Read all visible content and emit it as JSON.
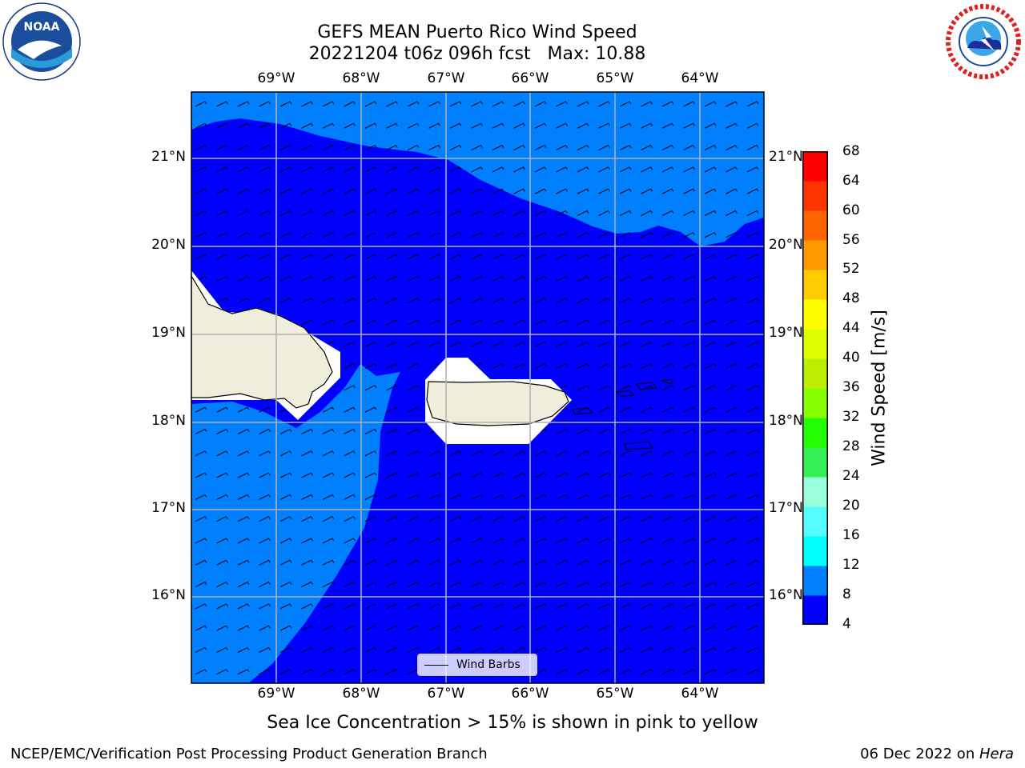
{
  "title": {
    "line1": "GEFS MEAN Puerto Rico Wind Speed",
    "line2": "20221204 t06z 096h fcst   Max: 10.88"
  },
  "map": {
    "lon_labels": [
      "69°W",
      "68°W",
      "67°W",
      "66°W",
      "65°W",
      "64°W"
    ],
    "lat_labels": [
      "21°N",
      "20°N",
      "19°N",
      "18°N",
      "17°N",
      "16°N"
    ],
    "legend_label": "Wind Barbs",
    "colors": {
      "land": "#efeedb",
      "bin_4_8": "#0000ff",
      "bin_8_12": "#0080ff",
      "grid": "#b0b0b0"
    }
  },
  "colorbar": {
    "label": "Wind Speed [m/s]",
    "ticks": [
      "68",
      "64",
      "60",
      "56",
      "52",
      "48",
      "44",
      "40",
      "36",
      "32",
      "28",
      "24",
      "20",
      "16",
      "12",
      "8",
      "4"
    ],
    "colors": [
      "#0000ff",
      "#0080ff",
      "#00ffff",
      "#55ffff",
      "#99ffdd",
      "#33ee55",
      "#22ff00",
      "#88ff00",
      "#bbee00",
      "#ddff00",
      "#ffff00",
      "#ffcc00",
      "#ff9900",
      "#ff6600",
      "#ff3300",
      "#ff0000"
    ]
  },
  "caption": "Sea Ice Concentration > 15% is shown in pink to yellow",
  "footer": {
    "left": "NCEP/EMC/Verification Post Processing Product Generation Branch",
    "right_date": "06 Dec 2022 on ",
    "right_host": "Hera"
  },
  "logos": {
    "left": "NOAA",
    "right": "NATIONAL WEATHER SERVICE"
  }
}
